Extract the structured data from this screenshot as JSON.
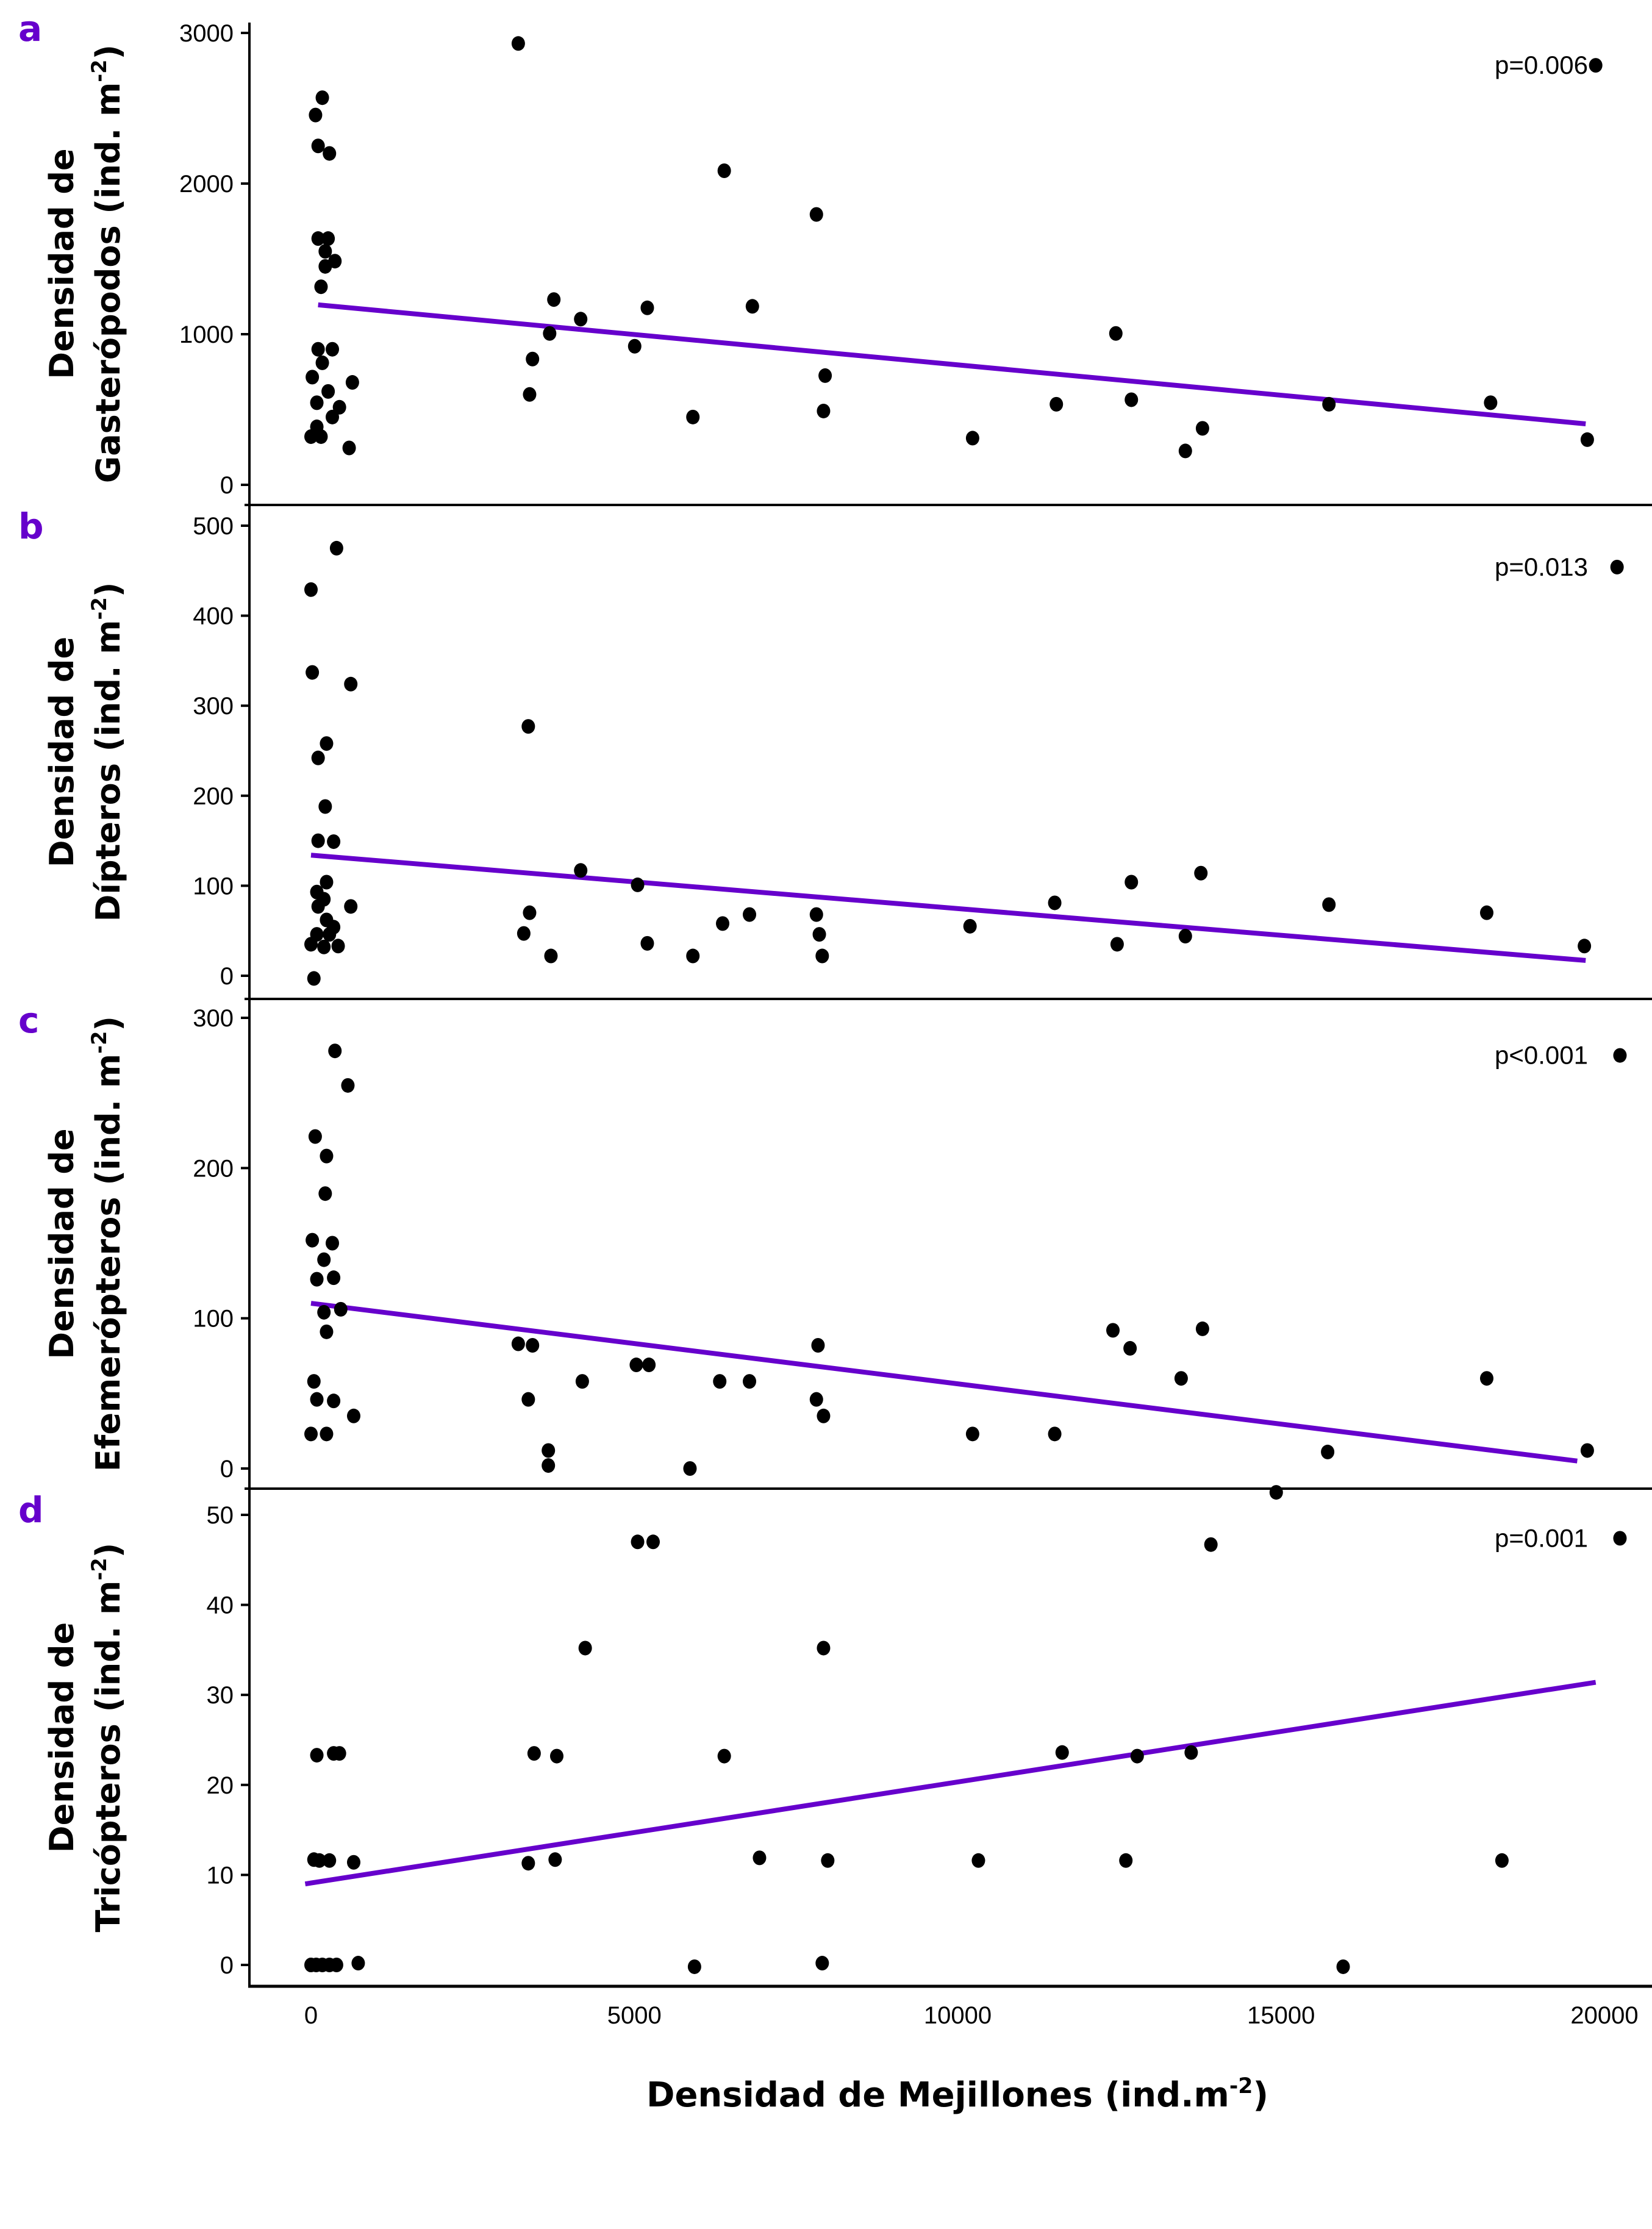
{
  "colors": {
    "accent": "#6600CC",
    "points": "#000000",
    "axis": "#000000"
  },
  "chart_data": [
    {
      "panel": "a",
      "type": "scatter",
      "ylabel_lines": [
        "Densidad de",
        "Gasterópodos (ind. m",
        "-2",
        ")"
      ],
      "ylim": [
        0,
        3000
      ],
      "yticks": [
        "0",
        "1000",
        "2000",
        "3000"
      ],
      "ytick_values": [
        0,
        1000,
        2000,
        3000
      ],
      "annotation": "p=0.006",
      "trend": {
        "x": [
          110,
          19710
        ],
        "y": [
          1195,
          405
        ]
      },
      "points": [
        [
          0,
          320
        ],
        [
          20,
          715
        ],
        [
          70,
          2455
        ],
        [
          175,
          2570
        ],
        [
          110,
          2250
        ],
        [
          285,
          2200
        ],
        [
          110,
          1635
        ],
        [
          265,
          1635
        ],
        [
          220,
          1550
        ],
        [
          370,
          1485
        ],
        [
          220,
          1450
        ],
        [
          155,
          1315
        ],
        [
          110,
          900
        ],
        [
          330,
          900
        ],
        [
          175,
          810
        ],
        [
          265,
          620
        ],
        [
          90,
          545
        ],
        [
          440,
          515
        ],
        [
          330,
          450
        ],
        [
          90,
          385
        ],
        [
          155,
          320
        ],
        [
          590,
          245
        ],
        [
          640,
          680
        ],
        [
          3205,
          2930
        ],
        [
          6390,
          2085
        ],
        [
          7815,
          1795
        ],
        [
          3755,
          1230
        ],
        [
          4170,
          1100
        ],
        [
          5200,
          1175
        ],
        [
          6825,
          1185
        ],
        [
          3690,
          1005
        ],
        [
          3425,
          835
        ],
        [
          3380,
          600
        ],
        [
          5005,
          920
        ],
        [
          5905,
          450
        ],
        [
          7950,
          725
        ],
        [
          7925,
          490
        ],
        [
          10230,
          310
        ],
        [
          11525,
          535
        ],
        [
          12445,
          1005
        ],
        [
          12685,
          565
        ],
        [
          13520,
          225
        ],
        [
          13785,
          375
        ],
        [
          15740,
          535
        ],
        [
          18240,
          545
        ],
        [
          19735,
          300
        ],
        [
          19865,
          2785
        ]
      ]
    },
    {
      "panel": "b",
      "type": "scatter",
      "ylabel_lines": [
        "Densidad de",
        "Dípteros (ind. m",
        "-2",
        ")"
      ],
      "ylim": [
        0,
        500
      ],
      "yticks": [
        "0",
        "100",
        "200",
        "300",
        "400",
        "500"
      ],
      "ytick_values": [
        0,
        100,
        200,
        300,
        400,
        500
      ],
      "annotation": "p=0.013",
      "trend": {
        "x": [
          0,
          19710
        ],
        "y": [
          134,
          17
        ]
      },
      "points": [
        [
          0,
          429
        ],
        [
          395,
          475
        ],
        [
          20,
          337
        ],
        [
          615,
          324
        ],
        [
          3360,
          277
        ],
        [
          240,
          258
        ],
        [
          110,
          242
        ],
        [
          220,
          188
        ],
        [
          110,
          150
        ],
        [
          350,
          149
        ],
        [
          240,
          104
        ],
        [
          90,
          93
        ],
        [
          200,
          85
        ],
        [
          110,
          77
        ],
        [
          615,
          77
        ],
        [
          240,
          62
        ],
        [
          350,
          54
        ],
        [
          90,
          46
        ],
        [
          285,
          46
        ],
        [
          0,
          35
        ],
        [
          200,
          32
        ],
        [
          420,
          33
        ],
        [
          45,
          -3
        ],
        [
          4170,
          117
        ],
        [
          5050,
          101
        ],
        [
          3290,
          47
        ],
        [
          3380,
          70
        ],
        [
          3710,
          22
        ],
        [
          5200,
          36
        ],
        [
          5905,
          22
        ],
        [
          6365,
          58
        ],
        [
          6780,
          68
        ],
        [
          7815,
          68
        ],
        [
          7860,
          46
        ],
        [
          7905,
          22
        ],
        [
          10190,
          55
        ],
        [
          11500,
          81
        ],
        [
          12465,
          35
        ],
        [
          12685,
          104
        ],
        [
          13520,
          44
        ],
        [
          13760,
          114
        ],
        [
          15740,
          79
        ],
        [
          18180,
          70
        ],
        [
          19690,
          33
        ],
        [
          20195,
          454
        ]
      ]
    },
    {
      "panel": "c",
      "type": "scatter",
      "ylabel_lines": [
        "Densidad de",
        "Efemerópteros (ind. m",
        "-2",
        ")"
      ],
      "ylim": [
        0,
        300
      ],
      "yticks": [
        "0",
        "100",
        "200",
        "300"
      ],
      "ytick_values": [
        0,
        100,
        200,
        300
      ],
      "annotation": "p<0.001",
      "trend": {
        "x": [
          0,
          19580
        ],
        "y": [
          110,
          5
        ]
      },
      "points": [
        [
          370,
          278
        ],
        [
          570,
          255
        ],
        [
          65,
          221
        ],
        [
          240,
          208
        ],
        [
          220,
          183
        ],
        [
          20,
          152
        ],
        [
          330,
          150
        ],
        [
          200,
          139
        ],
        [
          90,
          126
        ],
        [
          350,
          127
        ],
        [
          200,
          104
        ],
        [
          460,
          106
        ],
        [
          240,
          91
        ],
        [
          45,
          58
        ],
        [
          90,
          46
        ],
        [
          350,
          45
        ],
        [
          660,
          35
        ],
        [
          0,
          23
        ],
        [
          240,
          23
        ],
        [
          3205,
          83
        ],
        [
          3425,
          82
        ],
        [
          3360,
          46
        ],
        [
          3670,
          12
        ],
        [
          3670,
          2
        ],
        [
          4195,
          58
        ],
        [
          5030,
          69
        ],
        [
          5225,
          69
        ],
        [
          6320,
          58
        ],
        [
          6780,
          58
        ],
        [
          7840,
          82
        ],
        [
          7815,
          46
        ],
        [
          7925,
          35
        ],
        [
          5860,
          0
        ],
        [
          10230,
          23
        ],
        [
          11500,
          23
        ],
        [
          12400,
          92
        ],
        [
          12665,
          80
        ],
        [
          13455,
          60
        ],
        [
          13785,
          93
        ],
        [
          15720,
          11
        ],
        [
          18180,
          60
        ],
        [
          19735,
          12
        ],
        [
          20240,
          275
        ]
      ]
    },
    {
      "panel": "d",
      "type": "scatter",
      "ylabel_lines": [
        "Densidad de",
        "Tricópteros (ind. m",
        "-2",
        ")"
      ],
      "ylim": [
        0,
        50
      ],
      "yticks": [
        "0",
        "10",
        "20",
        "30",
        "40",
        "50"
      ],
      "ytick_values": [
        0,
        10,
        20,
        30,
        40,
        50
      ],
      "annotation": "p=0.001",
      "trend": {
        "x": [
          -90,
          19865
        ],
        "y": [
          9.0,
          31.4
        ]
      },
      "points": [
        [
          90,
          23.3
        ],
        [
          350,
          23.5
        ],
        [
          440,
          23.5
        ],
        [
          45,
          11.7
        ],
        [
          130,
          11.6
        ],
        [
          285,
          11.6
        ],
        [
          660,
          11.4
        ],
        [
          0,
          0
        ],
        [
          80,
          0
        ],
        [
          175,
          0
        ],
        [
          285,
          0
        ],
        [
          395,
          0
        ],
        [
          730,
          0.2
        ],
        [
          3360,
          11.3
        ],
        [
          3450,
          23.5
        ],
        [
          3800,
          23.2
        ],
        [
          3775,
          11.7
        ],
        [
          4240,
          35.2
        ],
        [
          5050,
          47.0
        ],
        [
          5290,
          47.0
        ],
        [
          6390,
          23.2
        ],
        [
          6935,
          11.9
        ],
        [
          5930,
          -0.2
        ],
        [
          7925,
          35.2
        ],
        [
          7990,
          11.6
        ],
        [
          7905,
          0.2
        ],
        [
          10320,
          11.6
        ],
        [
          11615,
          23.6
        ],
        [
          12600,
          11.6
        ],
        [
          12775,
          23.2
        ],
        [
          13610,
          23.6
        ],
        [
          13915,
          46.7
        ],
        [
          14925,
          52.5
        ],
        [
          15960,
          -0.2
        ],
        [
          18415,
          11.6
        ],
        [
          20240,
          47.4
        ]
      ]
    }
  ],
  "xaxis": {
    "label": "Densidad de Mejillones (ind.m",
    "label_sup": "-2",
    "label_end": ")",
    "xlim": [
      -1000,
      21000
    ],
    "ticks": [
      "0",
      "5000",
      "10000",
      "15000",
      "20000"
    ],
    "tick_values": [
      0,
      5000,
      10000,
      15000,
      20000
    ]
  }
}
